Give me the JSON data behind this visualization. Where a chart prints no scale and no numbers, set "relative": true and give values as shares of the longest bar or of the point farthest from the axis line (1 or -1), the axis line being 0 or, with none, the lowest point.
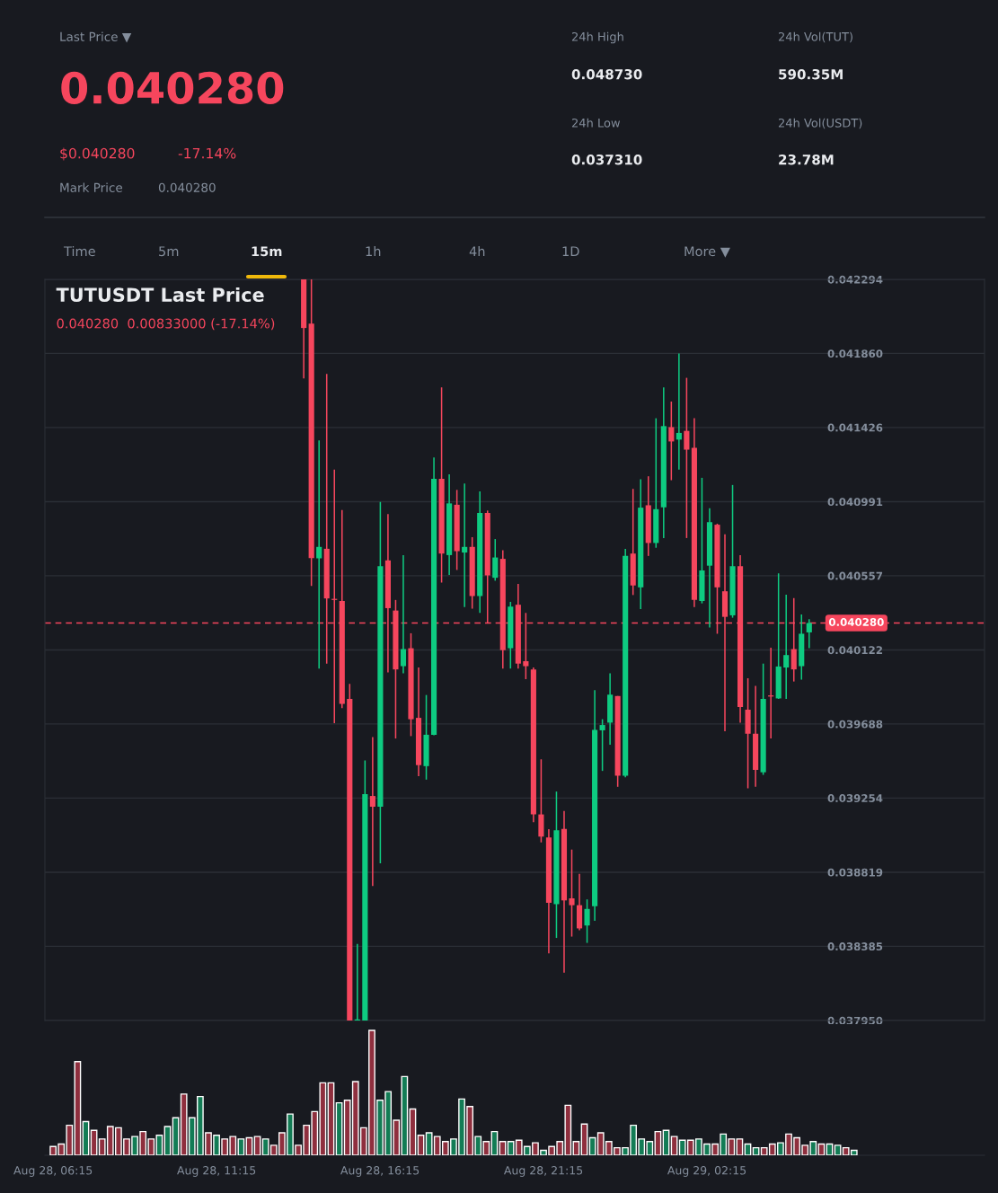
{
  "chart_data": [
    {
      "type": "other",
      "annotations": [
        "Last Price ▼",
        "0.040280",
        "$0.040280",
        "-17.14%",
        "Mark Price",
        "0.040280",
        "24h High",
        "0.048730",
        "24h Low",
        "0.037310",
        "24h Vol(TUT)",
        "590.35M",
        "24h Vol(USDT)",
        "23.78M",
        "Time",
        "5m",
        "15m",
        "1h",
        "4h",
        "1D",
        "More ▼"
      ]
    },
    {
      "type": "candlestick",
      "title": "TUTUSDT Last Price",
      "subtitle": "0.040280  0.00833000 (-17.14%)",
      "categories": [
        null,
        null,
        null,
        null,
        null,
        null,
        null,
        null,
        null,
        null,
        null,
        null,
        null,
        null,
        null,
        null,
        null,
        null,
        null,
        null,
        null,
        null,
        null,
        null,
        null,
        null,
        null,
        null,
        null,
        null,
        null,
        null,
        null,
        null,
        null,
        null,
        null,
        null,
        null,
        null,
        null,
        null,
        null,
        null,
        null,
        null,
        null,
        null,
        null,
        null,
        null,
        null,
        null,
        null,
        null,
        null,
        null,
        null,
        null,
        null,
        null,
        null,
        null,
        null,
        null,
        null,
        null
      ],
      "ohlc": [
        [
          0.042294,
          0.042294,
          0.041713,
          0.042009
        ],
        [
          0.042035,
          0.042294,
          0.040497,
          0.040661
        ],
        [
          0.040659,
          0.04135,
          0.040013,
          0.040726
        ],
        [
          0.040715,
          0.04174,
          0.040042,
          0.040424
        ],
        [
          0.040415,
          0.041179,
          0.039693,
          0.040415
        ],
        [
          0.040409,
          0.040942,
          0.039781,
          0.039806
        ],
        [
          0.039835,
          0.039923,
          0.03795,
          0.03795
        ],
        [
          0.03795,
          0.038399,
          0.03795,
          0.03795
        ],
        [
          0.03795,
          0.039475,
          0.03795,
          0.039277
        ],
        [
          0.039266,
          0.039611,
          0.038739,
          0.039203
        ],
        [
          0.039203,
          0.04099,
          0.038872,
          0.040613
        ],
        [
          0.040647,
          0.040919,
          0.039991,
          0.040367
        ],
        [
          0.040353,
          0.040415,
          0.039603,
          0.040008
        ],
        [
          0.040027,
          0.040678,
          0.039985,
          0.040127
        ],
        [
          0.040132,
          0.04022,
          0.039617,
          0.039716
        ],
        [
          0.039724,
          0.040019,
          0.039382,
          0.039447
        ],
        [
          0.039441,
          0.039858,
          0.039362,
          0.039625
        ],
        [
          0.039625,
          0.04125,
          0.039622,
          0.041125
        ],
        [
          0.041125,
          0.041661,
          0.040517,
          0.040687
        ],
        [
          0.040678,
          0.041151,
          0.040562,
          0.040981
        ],
        [
          0.040973,
          0.04106,
          0.040591,
          0.040701
        ],
        [
          0.040693,
          0.041097,
          0.040373,
          0.040726
        ],
        [
          0.040726,
          0.040783,
          0.040364,
          0.040438
        ],
        [
          0.040438,
          0.041052,
          0.040339,
          0.040925
        ],
        [
          0.040925,
          0.040939,
          0.040277,
          0.040559
        ],
        [
          0.040545,
          0.040772,
          0.040528,
          0.040664
        ],
        [
          0.040656,
          0.040707,
          0.040013,
          0.040121
        ],
        [
          0.040132,
          0.040404,
          0.040013,
          0.040376
        ],
        [
          0.040387,
          0.040509,
          0.040013,
          0.040042
        ],
        [
          0.040056,
          0.040339,
          0.039951,
          0.040027
        ],
        [
          0.040008,
          0.040019,
          0.039113,
          0.039158
        ],
        [
          0.039158,
          0.039481,
          0.038994,
          0.039028
        ],
        [
          0.039023,
          0.039071,
          0.038343,
          0.03864
        ],
        [
          0.038632,
          0.039292,
          0.038434,
          0.039065
        ],
        [
          0.039073,
          0.039178,
          0.03823,
          0.038654
        ],
        [
          0.038666,
          0.038952,
          0.038442,
          0.038626
        ],
        [
          0.038626,
          0.03881,
          0.038479,
          0.03849
        ],
        [
          0.038507,
          0.03866,
          0.038405,
          0.038604
        ],
        [
          0.03862,
          0.039886,
          0.038535,
          0.039654
        ],
        [
          0.039651,
          0.039716,
          0.039413,
          0.039682
        ],
        [
          0.039696,
          0.039985,
          0.039566,
          0.03986
        ],
        [
          0.039852,
          0.039852,
          0.03932,
          0.039385
        ],
        [
          0.039385,
          0.040715,
          0.039376,
          0.040673
        ],
        [
          0.040687,
          0.041066,
          0.040444,
          0.0405
        ],
        [
          0.040489,
          0.041123,
          0.040361,
          0.040956
        ],
        [
          0.04097,
          0.04114,
          0.040673,
          0.040749
        ],
        [
          0.040749,
          0.04148,
          0.040721,
          0.040947
        ],
        [
          0.040958,
          0.041661,
          0.040778,
          0.041434
        ],
        [
          0.041428,
          0.041578,
          0.041117,
          0.041344
        ],
        [
          0.041355,
          0.041859,
          0.041179,
          0.041394
        ],
        [
          0.041406,
          0.041717,
          0.040778,
          0.041296
        ],
        [
          0.041307,
          0.04148,
          0.040373,
          0.040415
        ],
        [
          0.040409,
          0.041131,
          0.040395,
          0.040588
        ],
        [
          0.040616,
          0.040953,
          0.040254,
          0.040871
        ],
        [
          0.040856,
          0.040862,
          0.040217,
          0.040489
        ],
        [
          0.040466,
          0.0408,
          0.039645,
          0.040316
        ],
        [
          0.040325,
          0.041089,
          0.040311,
          0.040613
        ],
        [
          0.040613,
          0.040678,
          0.039696,
          0.039787
        ],
        [
          0.039772,
          0.039956,
          0.039311,
          0.039631
        ],
        [
          0.039631,
          0.039912,
          0.03932,
          0.039419
        ],
        [
          0.039405,
          0.040042,
          0.03939,
          0.039835
        ],
        [
          0.039849,
          0.040135,
          0.039603,
          0.039849
        ],
        [
          0.039838,
          0.040571,
          0.039835,
          0.040025
        ],
        [
          0.040019,
          0.040446,
          0.039835,
          0.040092
        ],
        [
          0.040127,
          0.040426,
          0.039937,
          0.040008
        ],
        [
          0.040027,
          0.04033,
          0.039948,
          0.040217
        ],
        [
          0.040225,
          0.040302,
          0.040132,
          0.04028
        ]
      ],
      "colors": [
        "#f6465d",
        "#f6465d",
        "#0ecb81",
        "#f6465d",
        "#f6465d",
        "#f6465d",
        "#f6465d",
        "#0ecb81",
        "#0ecb81",
        "#f6465d",
        "#0ecb81",
        "#f6465d",
        "#f6465d",
        "#0ecb81",
        "#f6465d",
        "#f6465d",
        "#0ecb81",
        "#0ecb81",
        "#f6465d",
        "#0ecb81",
        "#f6465d",
        "#0ecb81",
        "#f6465d",
        "#0ecb81",
        "#f6465d",
        "#0ecb81",
        "#f6465d",
        "#0ecb81",
        "#f6465d",
        "#f6465d",
        "#f6465d",
        "#f6465d",
        "#f6465d",
        "#0ecb81",
        "#f6465d",
        "#f6465d",
        "#f6465d",
        "#0ecb81",
        "#0ecb81",
        "#0ecb81",
        "#0ecb81",
        "#f6465d",
        "#0ecb81",
        "#f6465d",
        "#0ecb81",
        "#f6465d",
        "#0ecb81",
        "#0ecb81",
        "#f6465d",
        "#0ecb81",
        "#f6465d",
        "#f6465d",
        "#0ecb81",
        "#0ecb81",
        "#f6465d",
        "#f6465d",
        "#0ecb81",
        "#f6465d",
        "#f6465d",
        "#f6465d",
        "#0ecb81",
        "#f6465d",
        "#0ecb81",
        "#0ecb81",
        "#f6465d",
        "#0ecb81",
        "#0ecb81"
      ],
      "ylim": [
        0.03795,
        0.042294
      ],
      "yticks": [
        {
          "value": 0.042294,
          "label": "0.042294"
        },
        {
          "value": 0.04186,
          "label": "0.041860"
        },
        {
          "value": 0.041426,
          "label": "0.041426"
        },
        {
          "value": 0.040991,
          "label": "0.040991"
        },
        {
          "value": 0.040557,
          "label": "0.040557"
        },
        {
          "value": 0.040122,
          "label": "0.040122"
        },
        {
          "value": 0.039688,
          "label": "0.039688"
        },
        {
          "value": 0.039254,
          "label": "0.039254"
        },
        {
          "value": 0.038819,
          "label": "0.038819"
        },
        {
          "value": 0.038385,
          "label": "0.038385"
        },
        {
          "value": 0.03795,
          "label": "0.037950"
        }
      ],
      "ref_lines": [
        {
          "axis": "y",
          "value": 0.04028,
          "label": "0.040280",
          "color": "#f6465d",
          "line_style": "dashed"
        }
      ],
      "grid": "y",
      "tick_labels": "y"
    },
    {
      "type": "bar",
      "relative": true,
      "categories": [
        "Aug 28, 06:15",
        null,
        null,
        null,
        null,
        null,
        null,
        null,
        null,
        null,
        null,
        null,
        null,
        null,
        null,
        null,
        null,
        null,
        null,
        null,
        "Aug 28, 11:15",
        null,
        null,
        null,
        null,
        null,
        null,
        null,
        null,
        null,
        null,
        null,
        null,
        null,
        null,
        null,
        null,
        null,
        null,
        null,
        "Aug 28, 16:15",
        null,
        null,
        null,
        null,
        null,
        null,
        null,
        null,
        null,
        null,
        null,
        null,
        null,
        null,
        null,
        null,
        null,
        null,
        null,
        "Aug 28, 21:15",
        null,
        null,
        null,
        null,
        null,
        null,
        null,
        null,
        null,
        null,
        null,
        null,
        null,
        null,
        null,
        null,
        null,
        null,
        null,
        "Aug 29, 02:15",
        null,
        null,
        null,
        null,
        null,
        null,
        null,
        null,
        null,
        null,
        null,
        null,
        null,
        null,
        null,
        null,
        null,
        null
      ],
      "values": [
        0.07,
        0.09,
        0.24,
        0.75,
        0.27,
        0.2,
        0.13,
        0.23,
        0.22,
        0.13,
        0.15,
        0.19,
        0.13,
        0.16,
        0.23,
        0.3,
        0.49,
        0.3,
        0.47,
        0.18,
        0.16,
        0.13,
        0.15,
        0.13,
        0.14,
        0.15,
        0.13,
        0.08,
        0.18,
        0.33,
        0.08,
        0.24,
        0.35,
        0.58,
        0.58,
        0.42,
        0.44,
        0.59,
        0.22,
        1,
        0.44,
        0.51,
        0.28,
        0.63,
        0.37,
        0.16,
        0.18,
        0.15,
        0.11,
        0.13,
        0.45,
        0.39,
        0.15,
        0.11,
        0.19,
        0.11,
        0.11,
        0.12,
        0.07,
        0.1,
        0.04,
        0.07,
        0.11,
        0.4,
        0.11,
        0.25,
        0.14,
        0.18,
        0.11,
        0.06,
        0.06,
        0.24,
        0.13,
        0.11,
        0.19,
        0.2,
        0.15,
        0.12,
        0.12,
        0.13,
        0.09,
        0.09,
        0.17,
        0.13,
        0.13,
        0.09,
        0.06,
        0.06,
        0.09,
        0.1,
        0.17,
        0.14,
        0.08,
        0.11,
        0.09,
        0.09,
        0.08,
        0.06,
        0.04
      ],
      "colors": [
        "#8f2f3e",
        "#8f2f3e",
        "#8f2f3e",
        "#8f2f3e",
        "#137c55",
        "#8f2f3e",
        "#8f2f3e",
        "#8f2f3e",
        "#8f2f3e",
        "#8f2f3e",
        "#137c55",
        "#8f2f3e",
        "#8f2f3e",
        "#137c55",
        "#137c55",
        "#137c55",
        "#8f2f3e",
        "#137c55",
        "#137c55",
        "#8f2f3e",
        "#137c55",
        "#8f2f3e",
        "#8f2f3e",
        "#137c55",
        "#8f2f3e",
        "#8f2f3e",
        "#137c55",
        "#8f2f3e",
        "#8f2f3e",
        "#137c55",
        "#8f2f3e",
        "#8f2f3e",
        "#8f2f3e",
        "#8f2f3e",
        "#8f2f3e",
        "#137c55",
        "#8f2f3e",
        "#8f2f3e",
        "#8f2f3e",
        "#8f2f3e",
        "#137c55",
        "#137c55",
        "#8f2f3e",
        "#137c55",
        "#8f2f3e",
        "#8f2f3e",
        "#137c55",
        "#8f2f3e",
        "#8f2f3e",
        "#137c55",
        "#137c55",
        "#8f2f3e",
        "#137c55",
        "#8f2f3e",
        "#137c55",
        "#8f2f3e",
        "#137c55",
        "#8f2f3e",
        "#137c55",
        "#8f2f3e",
        "#137c55",
        "#8f2f3e",
        "#8f2f3e",
        "#8f2f3e",
        "#8f2f3e",
        "#8f2f3e",
        "#137c55",
        "#8f2f3e",
        "#8f2f3e",
        "#8f2f3e",
        "#137c55",
        "#137c55",
        "#137c55",
        "#137c55",
        "#8f2f3e",
        "#137c55",
        "#8f2f3e",
        "#137c55",
        "#8f2f3e",
        "#137c55",
        "#137c55",
        "#8f2f3e",
        "#137c55",
        "#8f2f3e",
        "#8f2f3e",
        "#137c55",
        "#137c55",
        "#8f2f3e",
        "#8f2f3e",
        "#137c55",
        "#8f2f3e",
        "#8f2f3e",
        "#8f2f3e",
        "#137c55",
        "#8f2f3e",
        "#137c55",
        "#137c55",
        "#8f2f3e",
        "#137c55"
      ],
      "tick_labels": "x"
    }
  ]
}
